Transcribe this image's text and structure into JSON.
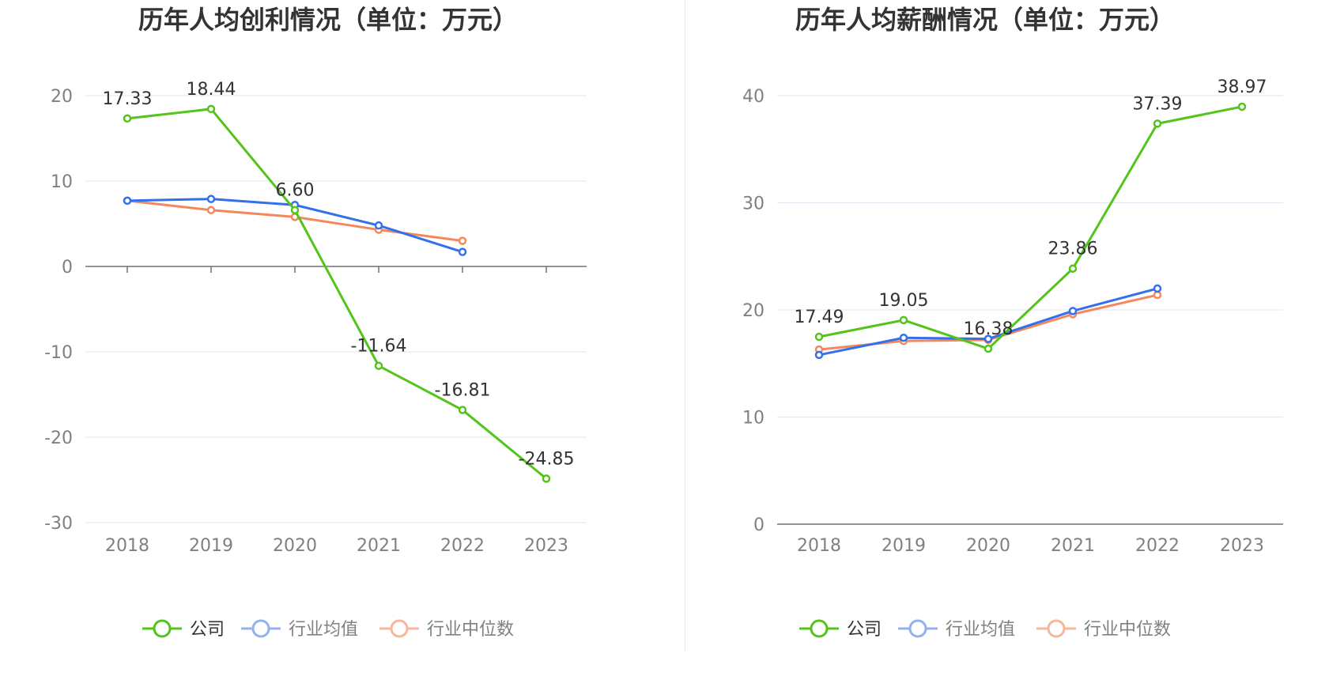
{
  "legend_colors": {
    "company": "#52c41a",
    "industry_avg": "#3370eb",
    "industry_median": "#f5875c"
  },
  "legend_inactive_colors": {
    "company": "#52c41a",
    "industry_avg": "#94b1ee",
    "industry_median": "#f7b79b"
  },
  "chart_data": [
    {
      "type": "line",
      "title": "历年人均创利情况（单位：万元）",
      "categories": [
        "2018",
        "2019",
        "2020",
        "2021",
        "2022",
        "2023"
      ],
      "ylim": [
        -30,
        20
      ],
      "yticks": [
        20,
        10,
        0,
        -10,
        -20,
        -30
      ],
      "ytick_labels": [
        "20",
        "10",
        "0",
        "-10",
        "-20",
        "-30"
      ],
      "grid": true,
      "legend_position": "bottom",
      "series": [
        {
          "name": "公司",
          "key": "company",
          "values": [
            17.33,
            18.44,
            6.6,
            -11.64,
            -16.81,
            -24.85
          ],
          "labels": [
            "17.33",
            "18.44",
            "6.60",
            "-11.64",
            "-16.81",
            "-24.85"
          ]
        },
        {
          "name": "行业均值",
          "key": "industry_avg",
          "values": [
            7.7,
            7.9,
            7.2,
            4.8,
            1.7,
            null
          ]
        },
        {
          "name": "行业中位数",
          "key": "industry_median",
          "values": [
            7.7,
            6.6,
            5.8,
            4.3,
            3.0,
            null
          ]
        }
      ]
    },
    {
      "type": "line",
      "title": "历年人均薪酬情况（单位：万元）",
      "categories": [
        "2018",
        "2019",
        "2020",
        "2021",
        "2022",
        "2023"
      ],
      "ylim": [
        0,
        40
      ],
      "yticks": [
        40,
        30,
        20,
        10,
        0
      ],
      "ytick_labels": [
        "40",
        "30",
        "20",
        "10",
        "0"
      ],
      "grid": true,
      "legend_position": "bottom",
      "series": [
        {
          "name": "公司",
          "key": "company",
          "values": [
            17.49,
            19.05,
            16.38,
            23.86,
            37.39,
            38.97
          ],
          "labels": [
            "17.49",
            "19.05",
            "16.38",
            "23.86",
            "37.39",
            "38.97"
          ]
        },
        {
          "name": "行业均值",
          "key": "industry_avg",
          "values": [
            15.8,
            17.4,
            17.3,
            19.9,
            22.0,
            null
          ]
        },
        {
          "name": "行业中位数",
          "key": "industry_median",
          "values": [
            16.3,
            17.1,
            17.2,
            19.6,
            21.4,
            null
          ]
        }
      ]
    }
  ]
}
